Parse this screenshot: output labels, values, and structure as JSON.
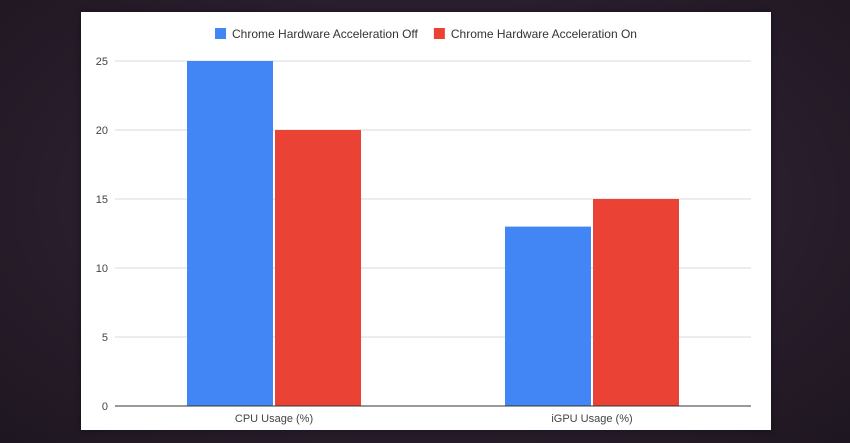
{
  "chart_data": {
    "type": "bar",
    "title": "",
    "xlabel": "",
    "ylabel": "",
    "categories": [
      "CPU Usage (%)",
      "iGPU Usage (%)"
    ],
    "series": [
      {
        "name": "Chrome Hardware Acceleration Off",
        "color": "#4285f4",
        "values": [
          25,
          13
        ]
      },
      {
        "name": "Chrome Hardware Acceleration On",
        "color": "#ea4335",
        "values": [
          20,
          15
        ]
      }
    ],
    "ylim": [
      0,
      25
    ],
    "yticks": [
      "0",
      "5",
      "10",
      "15",
      "20",
      "25"
    ],
    "grid": true,
    "legend_position": "top"
  }
}
